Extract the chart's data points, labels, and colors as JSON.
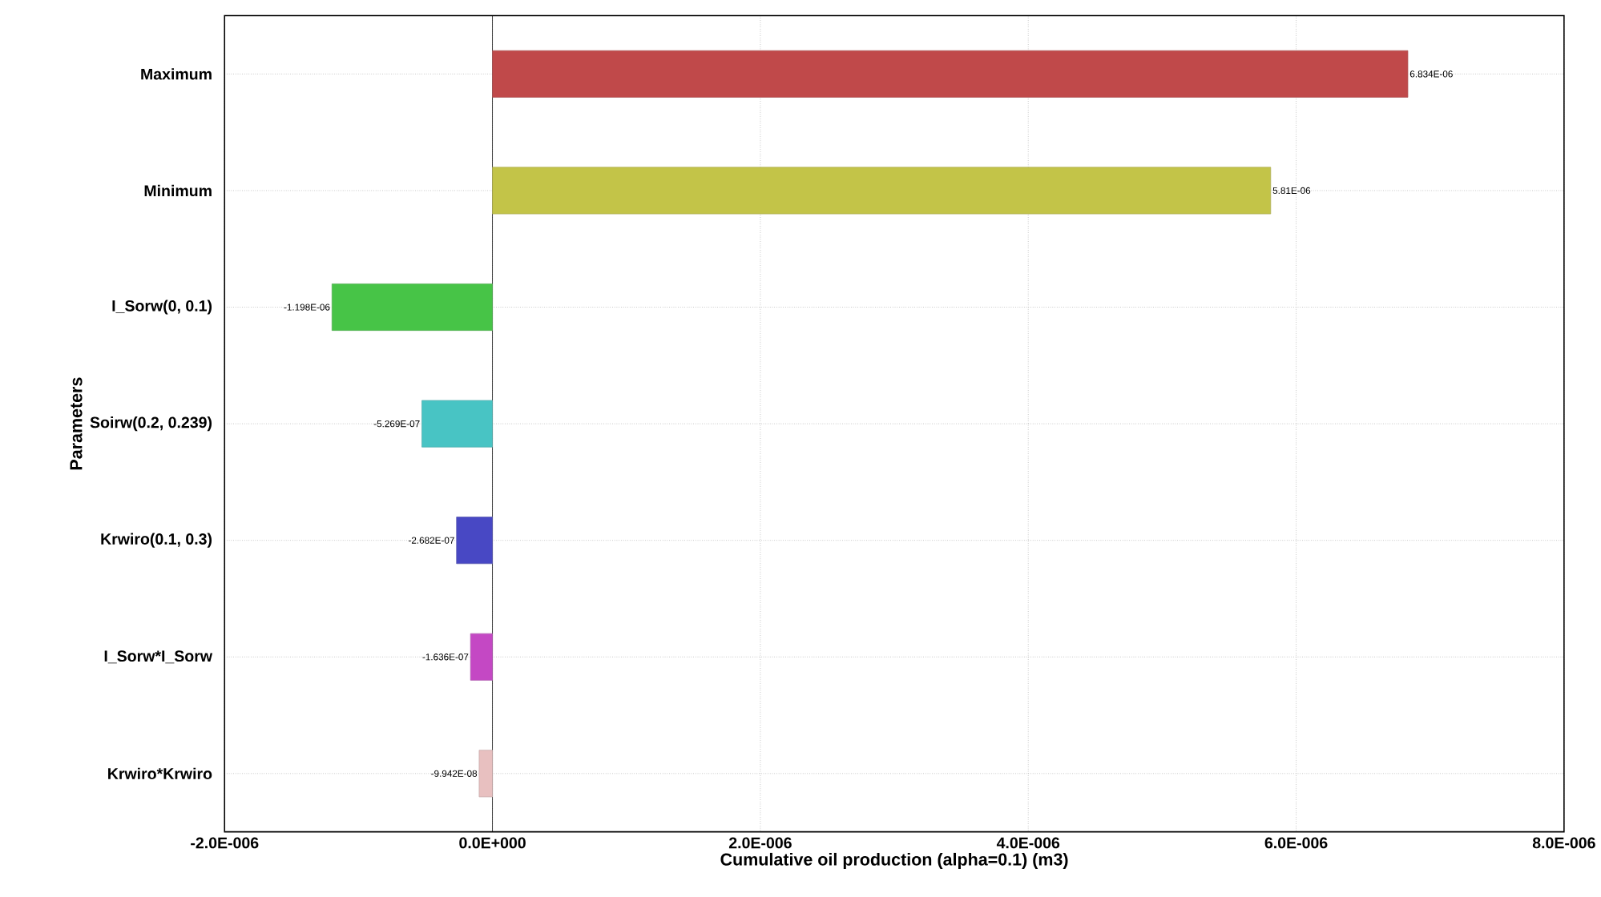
{
  "chart_data": {
    "type": "bar",
    "orientation": "horizontal",
    "xlabel": "Cumulative oil production (alpha=0.1) (m3)",
    "ylabel": "Parameters",
    "categories": [
      "Maximum",
      "Minimum",
      "I_Sorw(0, 0.1)",
      "Soirw(0.2, 0.239)",
      "Krwiro(0.1, 0.3)",
      "I_Sorw*I_Sorw",
      "Krwiro*Krwiro"
    ],
    "values": [
      6.834e-06,
      5.81e-06,
      -1.198e-06,
      -5.269e-07,
      -2.682e-07,
      -1.636e-07,
      -9.942e-08
    ],
    "value_labels": [
      "6.834E-06",
      "5.81E-06",
      "-1.198E-06",
      "-5.269E-07",
      "-2.682E-07",
      "-1.636E-07",
      "-9.942E-08"
    ],
    "colors": [
      "#c0494a",
      "#c3c448",
      "#47c447",
      "#48c4c4",
      "#4848c4",
      "#c448c4",
      "#e8c0c0"
    ],
    "xlim": [
      -2e-06,
      8e-06
    ],
    "xticks": [
      {
        "value": -2e-06,
        "label": "-2.0E-006"
      },
      {
        "value": 0,
        "label": "0.0E+000"
      },
      {
        "value": 2e-06,
        "label": "2.0E-006"
      },
      {
        "value": 4e-06,
        "label": "4.0E-006"
      },
      {
        "value": 6e-06,
        "label": "6.0E-006"
      },
      {
        "value": 8e-06,
        "label": "8.0E-006"
      }
    ],
    "ref_lines": [
      {
        "axis": "x",
        "value": 0,
        "color": "#000000"
      }
    ],
    "grid": true
  }
}
